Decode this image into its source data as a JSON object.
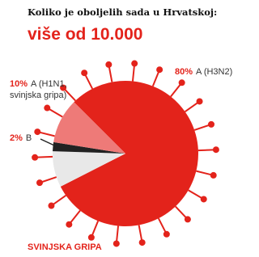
{
  "chart_data": {
    "type": "pie",
    "title": "Koliko je oboljelih sada u Hrvatskoj:",
    "subtitle": "više od 10.000",
    "categories": [
      "A (H3N2)",
      null,
      "B",
      "A (H1N1, svinjska gripa)"
    ],
    "values": [
      80,
      8,
      2,
      10
    ],
    "value_labels": [
      "80%",
      null,
      "2%",
      "10%"
    ],
    "colors": [
      "#e3231b",
      "#e8e8e8",
      "#222222",
      "#ee7a78"
    ],
    "footer": "SVINJSKA GRIPA"
  }
}
